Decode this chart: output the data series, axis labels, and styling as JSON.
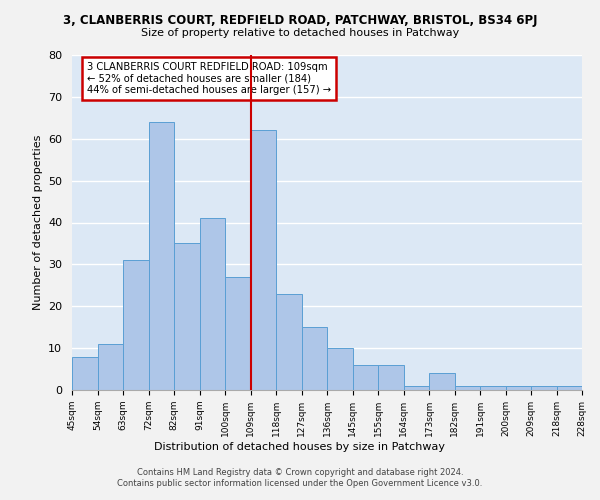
{
  "title": "3, CLANBERRIS COURT, REDFIELD ROAD, PATCHWAY, BRISTOL, BS34 6PJ",
  "subtitle": "Size of property relative to detached houses in Patchway",
  "xlabel": "Distribution of detached houses by size in Patchway",
  "ylabel": "Number of detached properties",
  "bin_labels": [
    "45sqm",
    "54sqm",
    "63sqm",
    "72sqm",
    "82sqm",
    "91sqm",
    "100sqm",
    "109sqm",
    "118sqm",
    "127sqm",
    "136sqm",
    "145sqm",
    "155sqm",
    "164sqm",
    "173sqm",
    "182sqm",
    "191sqm",
    "200sqm",
    "209sqm",
    "218sqm",
    "228sqm"
  ],
  "values": [
    8,
    11,
    31,
    64,
    35,
    41,
    27,
    62,
    23,
    15,
    10,
    6,
    6,
    1,
    4,
    1,
    1,
    1,
    1,
    1
  ],
  "bar_color": "#aec6e8",
  "bar_edge_color": "#5a9fd4",
  "vline_label": "109sqm",
  "vline_color": "#cc0000",
  "annotation_text": "3 CLANBERRIS COURT REDFIELD ROAD: 109sqm\n← 52% of detached houses are smaller (184)\n44% of semi-detached houses are larger (157) →",
  "annotation_box_color": "#ffffff",
  "annotation_box_edge": "#cc0000",
  "ylim": [
    0,
    80
  ],
  "yticks": [
    0,
    10,
    20,
    30,
    40,
    50,
    60,
    70,
    80
  ],
  "background_color": "#dce8f5",
  "grid_color": "#ffffff",
  "fig_bg_color": "#f2f2f2",
  "footer": "Contains HM Land Registry data © Crown copyright and database right 2024.\nContains public sector information licensed under the Open Government Licence v3.0."
}
